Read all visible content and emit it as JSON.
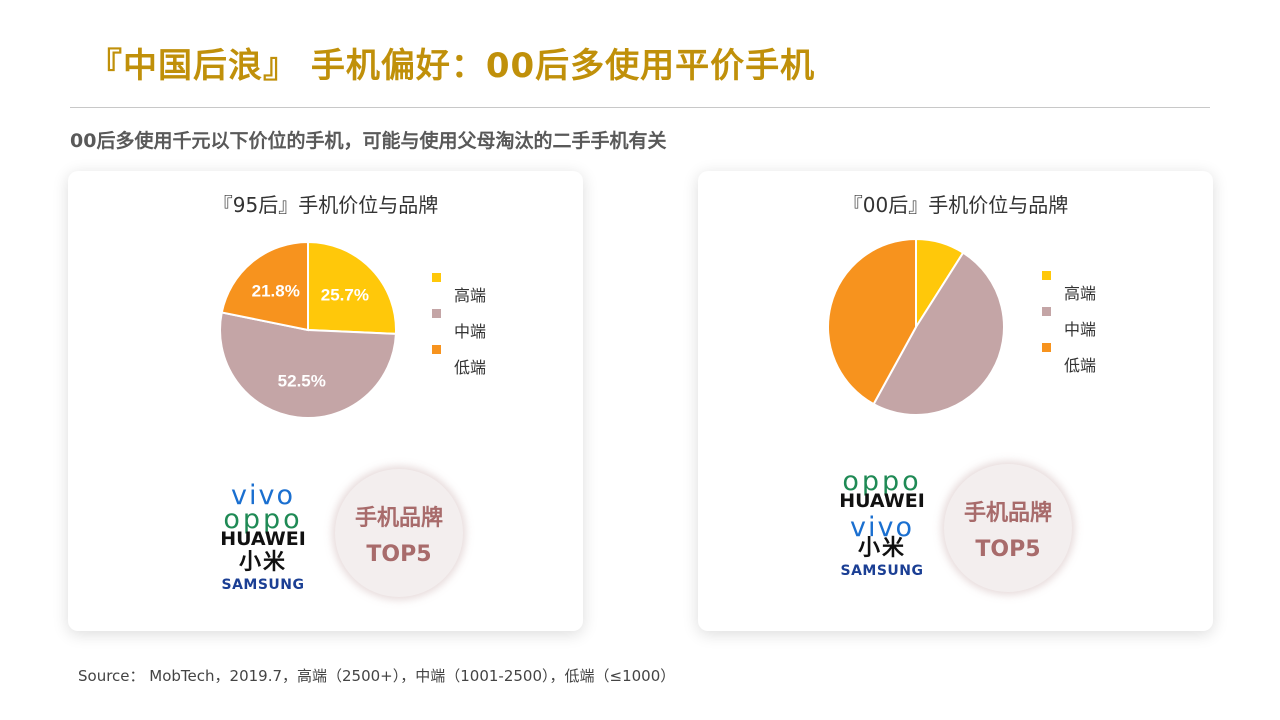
{
  "title": "『中国后浪』 手机偏好：00后多使用平价手机",
  "subtitle": "00后多使用千元以下价位的手机，可能与使用父母淘汰的二手手机有关",
  "source": "Source： MobTech，2019.7，高端（2500+），中端（1001-2500），低端（≤1000）",
  "colors": {
    "title": "#C0900A",
    "high": "#FFC80A",
    "mid": "#C4A5A6",
    "low": "#F7931E",
    "badge_text": "#A86B6B"
  },
  "chart_data": [
    {
      "type": "pie",
      "title": "『95后』手机价位与品牌",
      "categories": [
        "高端",
        "中端",
        "低端"
      ],
      "values": [
        25.7,
        52.5,
        21.8
      ],
      "data_labels": [
        "25.7%",
        "52.5%",
        "21.8%"
      ],
      "colors": [
        "#FFC80A",
        "#C4A5A6",
        "#F7931E"
      ],
      "legend_position": "right"
    },
    {
      "type": "pie",
      "title": "『00后』手机价位与品牌",
      "categories": [
        "高端",
        "中端",
        "低端"
      ],
      "values": [
        9,
        49,
        42
      ],
      "data_labels": [
        "",
        "",
        ""
      ],
      "colors": [
        "#FFC80A",
        "#C4A5A6",
        "#F7931E"
      ],
      "legend_position": "right"
    }
  ],
  "brands_95": [
    "vivo",
    "oppo",
    "HUAWEI",
    "小米",
    "SAMSUNG"
  ],
  "brands_00": [
    "oppo",
    "HUAWEI",
    "vivo",
    "小米",
    "SAMSUNG"
  ],
  "badge": {
    "line1": "手机品牌",
    "line2": "TOP5"
  }
}
